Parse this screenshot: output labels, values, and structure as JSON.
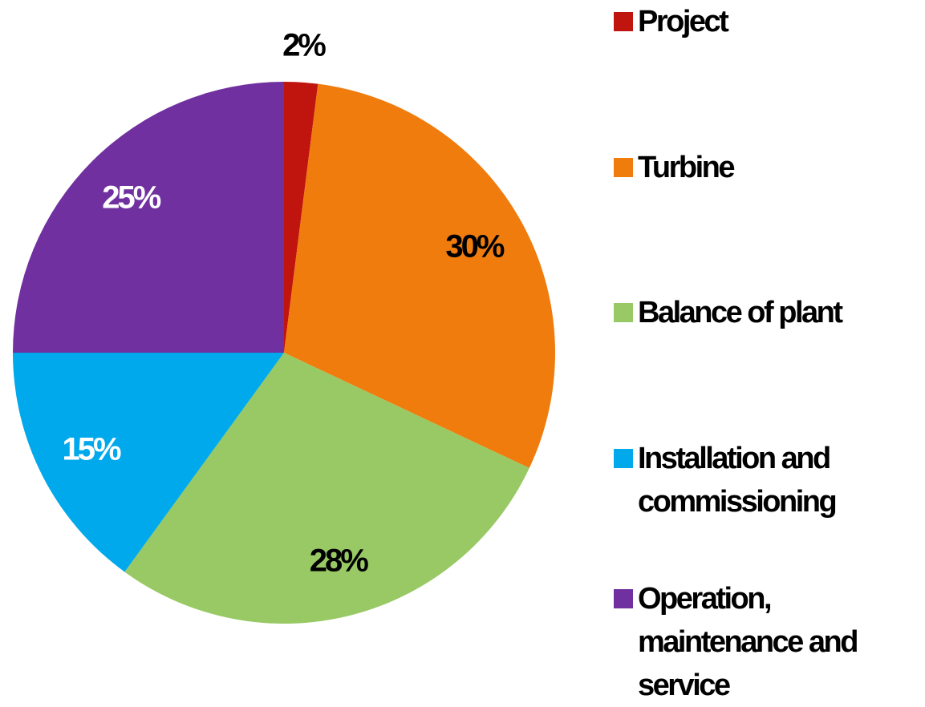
{
  "chart_data": {
    "type": "pie",
    "categories": [
      "Project",
      "Turbine",
      "Balance of plant",
      "Installation and commissioning",
      "Operation, maintenance and service"
    ],
    "values": [
      2,
      30,
      28,
      15,
      25
    ],
    "value_labels": [
      "2%",
      "30%",
      "28%",
      "15%",
      "25%"
    ],
    "colors": [
      "#c0150f",
      "#f07c0e",
      "#99c964",
      "#00a9ec",
      "#7030a0"
    ],
    "label_colors": [
      "#000000",
      "#000000",
      "#000000",
      "#ffffff",
      "#ffffff"
    ],
    "legend": "right"
  }
}
